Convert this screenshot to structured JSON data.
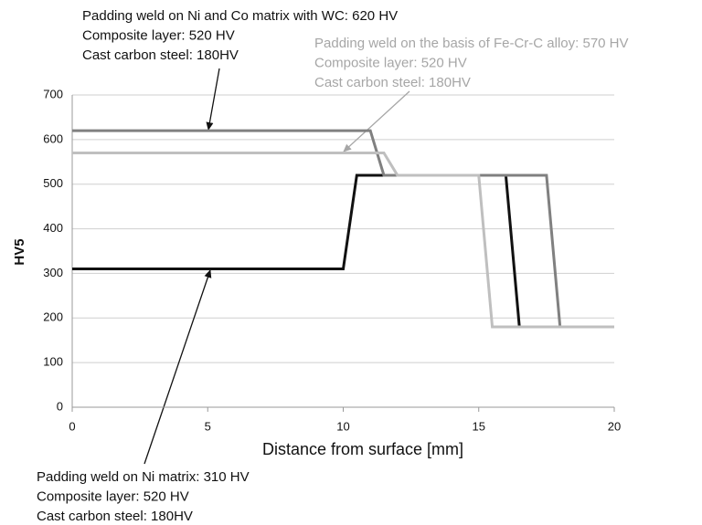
{
  "chart_data": {
    "type": "line",
    "xlabel": "Distance from surface [mm]",
    "ylabel": "HV5",
    "xlim": [
      0,
      20
    ],
    "xticks": [
      0,
      5,
      10,
      15,
      20
    ],
    "ylim": [
      0,
      700
    ],
    "yticks": [
      0,
      100,
      200,
      300,
      400,
      500,
      600,
      700
    ],
    "grid": true,
    "series": [
      {
        "name": "Padding weld on Ni matrix: 310 HV",
        "notes": [
          "Composite layer: 520 HV",
          "Cast carbon steel: 180HV"
        ],
        "color": "#111111",
        "x": [
          0,
          10,
          10.5,
          16,
          16.5
        ],
        "values": [
          310,
          310,
          520,
          520,
          180
        ]
      },
      {
        "name": "Padding weld on Ni and Co matrix with WC: 620 HV",
        "notes": [
          "Composite layer: 520 HV",
          "Cast carbon steel: 180HV"
        ],
        "color": "#808080",
        "x": [
          0,
          11,
          11.5,
          17.5,
          18,
          20
        ],
        "values": [
          620,
          620,
          520,
          520,
          180,
          180
        ]
      },
      {
        "name": "Padding weld on the basis of Fe-Cr-C alloy: 570 HV",
        "notes": [
          "Composite layer: 520 HV",
          "Cast carbon steel: 180HV"
        ],
        "color": "#bfbfbf",
        "x": [
          0,
          11.5,
          12,
          15,
          15.5,
          20
        ],
        "values": [
          570,
          570,
          520,
          520,
          180,
          180
        ]
      }
    ]
  }
}
